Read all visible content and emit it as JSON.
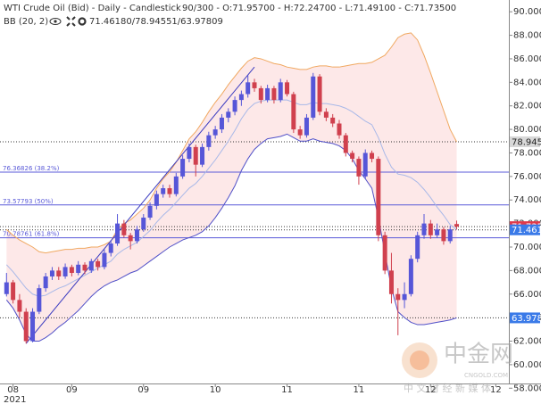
{
  "chart_data": {
    "type": "candlestick",
    "title": "WTI Crude Oil (Bid) - Daily - Candlestick",
    "subtitle": "90/300 - O:71.95700 - H:72.24700 - L:71.49100 - C:71.73500",
    "indicator": {
      "name": "BB (20, 2)",
      "values_text": "71.46180/78.94551/63.97809"
    },
    "up_color": "#5656d8",
    "down_color": "#d0404e",
    "ohlc": [
      [
        66.0,
        67.8,
        65.8,
        67.0
      ],
      [
        67.0,
        67.2,
        65.2,
        65.5
      ],
      [
        65.5,
        66.0,
        64.0,
        64.5
      ],
      [
        64.5,
        64.8,
        61.8,
        62.0
      ],
      [
        62.0,
        64.8,
        61.9,
        64.5
      ],
      [
        64.5,
        66.8,
        64.3,
        66.5
      ],
      [
        66.5,
        67.8,
        66.2,
        67.5
      ],
      [
        67.5,
        68.3,
        67.2,
        68.0
      ],
      [
        68.0,
        68.3,
        67.2,
        67.5
      ],
      [
        67.5,
        68.6,
        67.3,
        68.3
      ],
      [
        68.3,
        68.5,
        67.5,
        67.8
      ],
      [
        67.8,
        68.8,
        67.6,
        68.5
      ],
      [
        68.5,
        68.7,
        67.7,
        68.0
      ],
      [
        68.0,
        69.0,
        67.8,
        68.8
      ],
      [
        68.8,
        69.0,
        68.0,
        68.3
      ],
      [
        68.3,
        69.8,
        68.1,
        69.5
      ],
      [
        69.5,
        70.6,
        69.2,
        70.3
      ],
      [
        70.3,
        72.8,
        70.1,
        72.0
      ],
      [
        72.0,
        72.3,
        70.8,
        71.0
      ],
      [
        71.0,
        71.2,
        69.8,
        70.5
      ],
      [
        70.5,
        71.8,
        70.3,
        71.5
      ],
      [
        71.5,
        72.8,
        71.3,
        72.5
      ],
      [
        72.5,
        73.8,
        72.3,
        73.5
      ],
      [
        73.5,
        74.8,
        73.2,
        74.5
      ],
      [
        74.5,
        75.3,
        74.2,
        75.0
      ],
      [
        75.0,
        75.3,
        74.2,
        74.5
      ],
      [
        74.5,
        76.3,
        74.3,
        76.0
      ],
      [
        76.0,
        77.8,
        75.8,
        77.5
      ],
      [
        77.5,
        78.8,
        77.2,
        78.5
      ],
      [
        78.5,
        78.7,
        76.0,
        77.0
      ],
      [
        77.0,
        78.8,
        76.8,
        78.5
      ],
      [
        78.5,
        79.8,
        78.2,
        79.5
      ],
      [
        79.5,
        80.3,
        79.2,
        80.0
      ],
      [
        80.0,
        81.3,
        79.7,
        81.0
      ],
      [
        81.0,
        81.8,
        80.6,
        81.5
      ],
      [
        81.5,
        82.8,
        81.2,
        82.5
      ],
      [
        82.5,
        83.3,
        82.0,
        83.0
      ],
      [
        83.0,
        84.6,
        82.7,
        84.0
      ],
      [
        84.0,
        84.3,
        83.2,
        83.5
      ],
      [
        83.5,
        83.7,
        82.2,
        82.5
      ],
      [
        82.5,
        83.8,
        82.3,
        83.5
      ],
      [
        83.5,
        83.7,
        82.2,
        82.5
      ],
      [
        82.5,
        84.3,
        82.3,
        84.0
      ],
      [
        84.0,
        84.2,
        82.8,
        83.0
      ],
      [
        83.0,
        83.2,
        79.7,
        80.0
      ],
      [
        80.0,
        80.3,
        79.2,
        79.5
      ],
      [
        79.5,
        81.3,
        79.3,
        81.0
      ],
      [
        81.0,
        84.8,
        80.8,
        84.5
      ],
      [
        84.5,
        84.7,
        81.2,
        81.5
      ],
      [
        81.5,
        81.8,
        80.7,
        81.0
      ],
      [
        81.0,
        81.3,
        80.2,
        80.5
      ],
      [
        80.5,
        80.8,
        79.2,
        79.5
      ],
      [
        79.5,
        79.7,
        77.7,
        78.0
      ],
      [
        78.0,
        78.2,
        77.2,
        77.5
      ],
      [
        77.5,
        77.7,
        75.3,
        76.0
      ],
      [
        76.0,
        78.3,
        75.8,
        78.0
      ],
      [
        78.0,
        78.2,
        77.2,
        77.5
      ],
      [
        77.5,
        77.7,
        70.5,
        71.0
      ],
      [
        71.0,
        71.3,
        67.7,
        68.0
      ],
      [
        68.0,
        69.5,
        65.2,
        66.0
      ],
      [
        66.0,
        66.5,
        62.5,
        65.5
      ],
      [
        65.5,
        67.0,
        64.8,
        66.0
      ],
      [
        66.0,
        69.3,
        65.8,
        69.0
      ],
      [
        69.0,
        71.3,
        68.7,
        71.0
      ],
      [
        71.0,
        72.8,
        70.7,
        72.0
      ],
      [
        72.0,
        72.3,
        70.7,
        71.0
      ],
      [
        71.0,
        72.0,
        70.8,
        71.5
      ],
      [
        71.5,
        71.7,
        70.2,
        70.5
      ],
      [
        70.5,
        71.8,
        70.3,
        71.5
      ],
      [
        71.957,
        72.247,
        71.491,
        71.735
      ]
    ],
    "bb": {
      "upper": [
        71.5,
        71.0,
        70.6,
        70.3,
        70.0,
        69.6,
        69.5,
        69.6,
        69.7,
        69.8,
        69.8,
        69.9,
        69.9,
        70.0,
        70.0,
        70.2,
        70.5,
        71.5,
        72.0,
        72.3,
        72.8,
        73.3,
        74.0,
        75.0,
        75.8,
        76.4,
        77.2,
        78.2,
        79.2,
        79.8,
        80.6,
        81.5,
        82.3,
        83.0,
        83.8,
        84.5,
        85.2,
        85.8,
        86.1,
        86.0,
        85.8,
        85.6,
        85.5,
        85.3,
        85.2,
        85.1,
        85.1,
        85.3,
        85.4,
        85.4,
        85.3,
        85.3,
        85.4,
        85.5,
        85.6,
        85.6,
        85.7,
        86.0,
        86.3,
        87.0,
        87.8,
        88.1,
        88.2,
        87.6,
        86.3,
        84.8,
        83.2,
        81.6,
        80.0,
        78.946
      ],
      "middle": [
        68.5,
        67.9,
        67.2,
        66.5,
        66.0,
        65.8,
        65.9,
        66.2,
        66.5,
        66.7,
        67.0,
        67.3,
        67.6,
        67.9,
        68.2,
        68.5,
        68.8,
        69.4,
        69.8,
        70.1,
        70.4,
        70.9,
        71.4,
        72.1,
        72.7,
        73.2,
        73.8,
        74.4,
        75.0,
        75.4,
        76.0,
        76.7,
        77.4,
        78.2,
        79.0,
        79.9,
        80.9,
        81.7,
        82.2,
        82.4,
        82.5,
        82.5,
        82.5,
        82.5,
        82.3,
        82.1,
        82.1,
        82.3,
        82.2,
        82.2,
        82.1,
        82.0,
        81.8,
        81.5,
        81.1,
        80.7,
        80.4,
        79.3,
        77.9,
        76.8,
        76.2,
        76.1,
        75.9,
        75.5,
        74.9,
        74.2,
        73.4,
        72.7,
        71.9,
        71.4618
      ],
      "lower": [
        65.5,
        64.8,
        63.8,
        62.6,
        62.0,
        62.0,
        62.3,
        62.7,
        63.2,
        63.6,
        64.1,
        64.6,
        65.2,
        65.8,
        66.3,
        66.7,
        67.0,
        67.2,
        67.5,
        67.8,
        68.0,
        68.4,
        68.8,
        69.2,
        69.6,
        70.0,
        70.3,
        70.6,
        70.8,
        71.0,
        71.3,
        71.8,
        72.5,
        73.3,
        74.2,
        75.2,
        76.5,
        77.5,
        78.3,
        78.8,
        79.2,
        79.3,
        79.4,
        79.6,
        79.3,
        79.0,
        79.0,
        79.2,
        79.0,
        78.9,
        78.8,
        78.6,
        78.2,
        77.5,
        76.5,
        75.8,
        75.0,
        72.5,
        69.5,
        66.5,
        64.5,
        64.0,
        63.6,
        63.4,
        63.4,
        63.5,
        63.6,
        63.7,
        63.8,
        63.978
      ],
      "upper_color": "#f0a860",
      "middle_color": "#a8b8e8",
      "lower_color": "#5050c8",
      "fill": "#fde8e8"
    },
    "trendline": {
      "from": [
        3,
        61.8
      ],
      "to": [
        38,
        85.3
      ],
      "color": "#3a3ac0"
    },
    "fib_levels": [
      {
        "value": 76.36826,
        "label": "76.36826 (38.2%)"
      },
      {
        "value": 73.57793,
        "label": "73.57793 (50%)"
      },
      {
        "value": 70.78761,
        "label": "70.78761 (61.8%)"
      }
    ],
    "fib_color": "#5a5ad8",
    "price_lines": [
      {
        "value": 78.945,
        "color": "#d8d8d8",
        "text_color": "#222222"
      },
      {
        "value": 71.735,
        "color": "#e03a4a",
        "text_color": "#ffffff"
      },
      {
        "value": 71.461,
        "color": "#3a7ae8",
        "text_color": "#ffffff"
      },
      {
        "value": 63.978,
        "color": "#3a7ae8",
        "text_color": "#ffffff"
      }
    ],
    "xlim": [
      -1,
      77
    ],
    "xticks": [
      {
        "value": 1,
        "label": "08"
      },
      {
        "value": 10,
        "label": "09"
      },
      {
        "value": 21,
        "label": "09"
      },
      {
        "value": 32,
        "label": "10"
      },
      {
        "value": 43,
        "label": "11"
      },
      {
        "value": 54,
        "label": "11"
      },
      {
        "value": 65,
        "label": "12"
      },
      {
        "value": 75,
        "label": "12"
      }
    ],
    "year_label": "2021",
    "ylim": [
      58.4,
      91.0
    ],
    "yticks": [
      {
        "value": 90,
        "label": "90.000"
      },
      {
        "value": 88,
        "label": "88.000"
      },
      {
        "value": 86,
        "label": "86.000"
      },
      {
        "value": 84,
        "label": "84.000"
      },
      {
        "value": 82,
        "label": "82.000"
      },
      {
        "value": 80,
        "label": "80.000"
      },
      {
        "value": 78,
        "label": "78.000"
      },
      {
        "value": 76,
        "label": "76.000"
      },
      {
        "value": 74,
        "label": "74.000"
      },
      {
        "value": 72,
        "label": "72.000"
      },
      {
        "value": 70,
        "label": "70.000"
      },
      {
        "value": 68,
        "label": "68.000"
      },
      {
        "value": 66,
        "label": "66.000"
      },
      {
        "value": 64,
        "label": "64.000"
      },
      {
        "value": 62,
        "label": "62.000"
      },
      {
        "value": 60,
        "label": "60.000"
      },
      {
        "value": 58,
        "label": "58.000"
      }
    ],
    "watermark": {
      "brand": "中金网",
      "site": "CNGOLD.COM",
      "slogan": "中 文 财 经 新 媒 体"
    }
  }
}
